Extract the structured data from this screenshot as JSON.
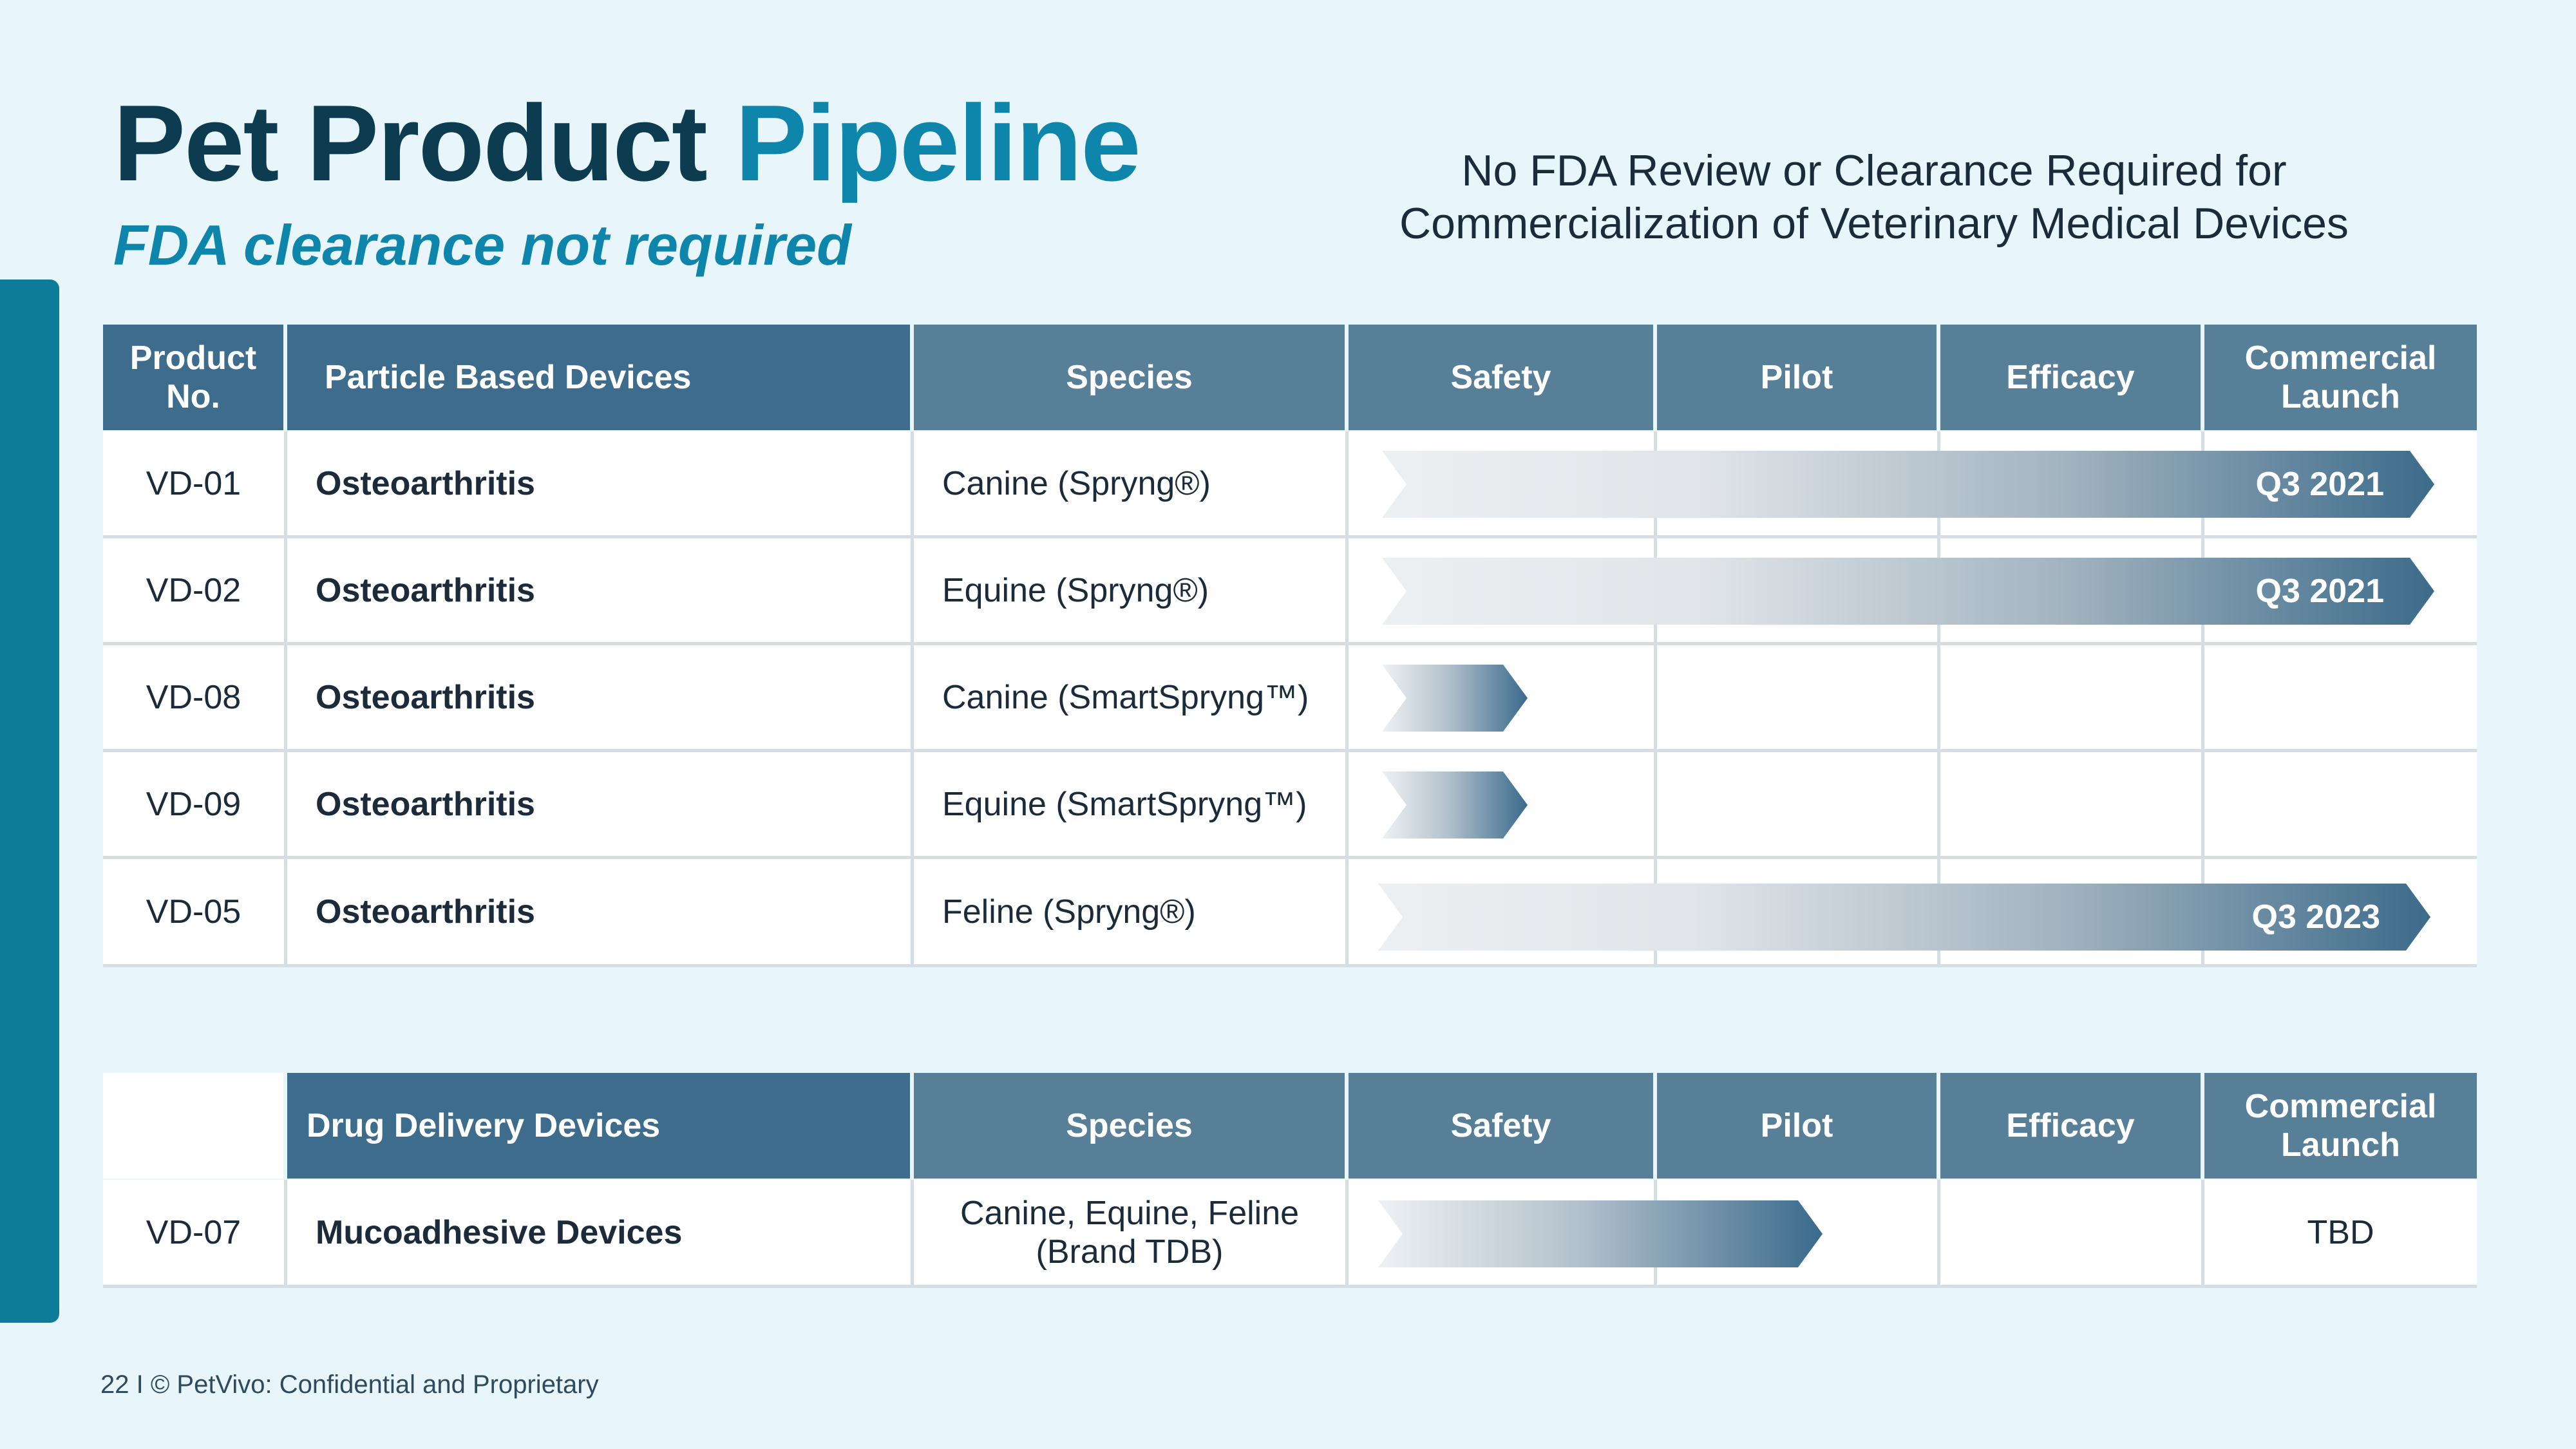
{
  "title": {
    "main": "Pet Product",
    "accent": "Pipeline"
  },
  "subtitle": "FDA clearance not required",
  "note": "No FDA Review or Clearance Required for Commercialization of Veterinary Medical Devices",
  "table1": {
    "headers": {
      "no": "Product No.",
      "name": "Particle Based Devices",
      "species": "Species",
      "safety": "Safety",
      "pilot": "Pilot",
      "efficacy": "Efficacy",
      "launch": "Commercial Launch"
    },
    "rows": [
      {
        "no": "VD-01",
        "name": "Osteoarthritis",
        "species": "Canine (Spryng®)",
        "stage": "Commercial Launch",
        "launch": "Q3 2021"
      },
      {
        "no": "VD-02",
        "name": "Osteoarthritis",
        "species": "Equine (Spryng®)",
        "stage": "Commercial Launch",
        "launch": "Q3 2021"
      },
      {
        "no": "VD-08",
        "name": "Osteoarthritis",
        "species": "Canine (SmartSpryng™)",
        "stage": "Safety"
      },
      {
        "no": "VD-09",
        "name": "Osteoarthritis",
        "species": "Equine (SmartSpryng™)",
        "stage": "Safety"
      },
      {
        "no": "VD-05",
        "name": "Osteoarthritis",
        "species": "Feline (Spryng®)",
        "stage": "Commercial Launch",
        "launch": "Q3 2023"
      }
    ]
  },
  "table2": {
    "headers": {
      "name": "Drug Delivery Devices",
      "species": "Species",
      "safety": "Safety",
      "pilot": "Pilot",
      "efficacy": "Efficacy",
      "launch": "Commercial Launch"
    },
    "rows": [
      {
        "no": "VD-07",
        "name": "Mucoadhesive Devices",
        "species": "Canine, Equine, Feline (Brand TDB)",
        "stage": "Pilot",
        "launch": "TBD"
      }
    ]
  },
  "footer": "22 I © PetVivo: Confidential and Proprietary",
  "colors": {
    "accent": "#0e86ab",
    "dark_title": "#0d3b4f",
    "header": "#587f98",
    "header_dark": "#3e6c8c",
    "background": "#e8f6fc",
    "side_bar": "#0e7b9a"
  }
}
